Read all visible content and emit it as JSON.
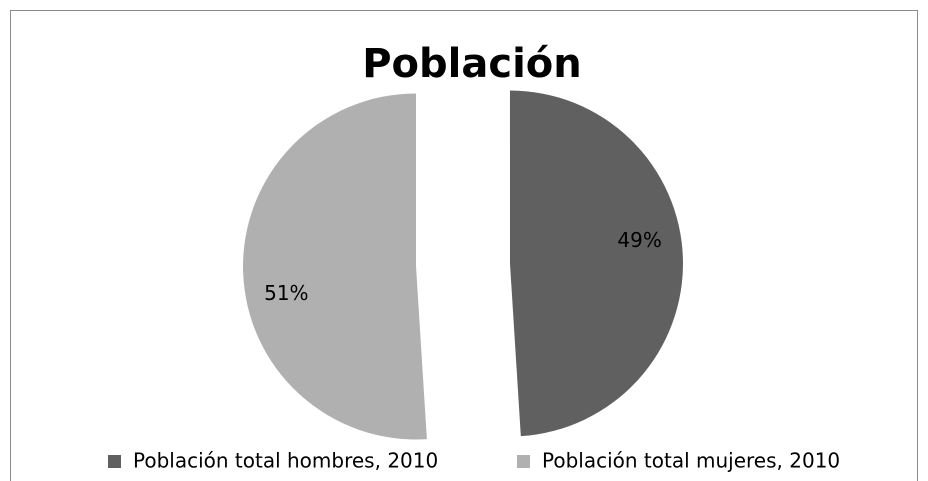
{
  "chart_data": {
    "type": "pie",
    "title": "Población",
    "categories": [
      "Población total hombres, 2010",
      "Población total mujeres, 2010"
    ],
    "values": [
      49,
      51
    ],
    "value_labels": [
      "49%",
      "51%"
    ],
    "colors": [
      "#606060",
      "#b0b0b0"
    ],
    "exploded": true,
    "legend": "bottom"
  }
}
